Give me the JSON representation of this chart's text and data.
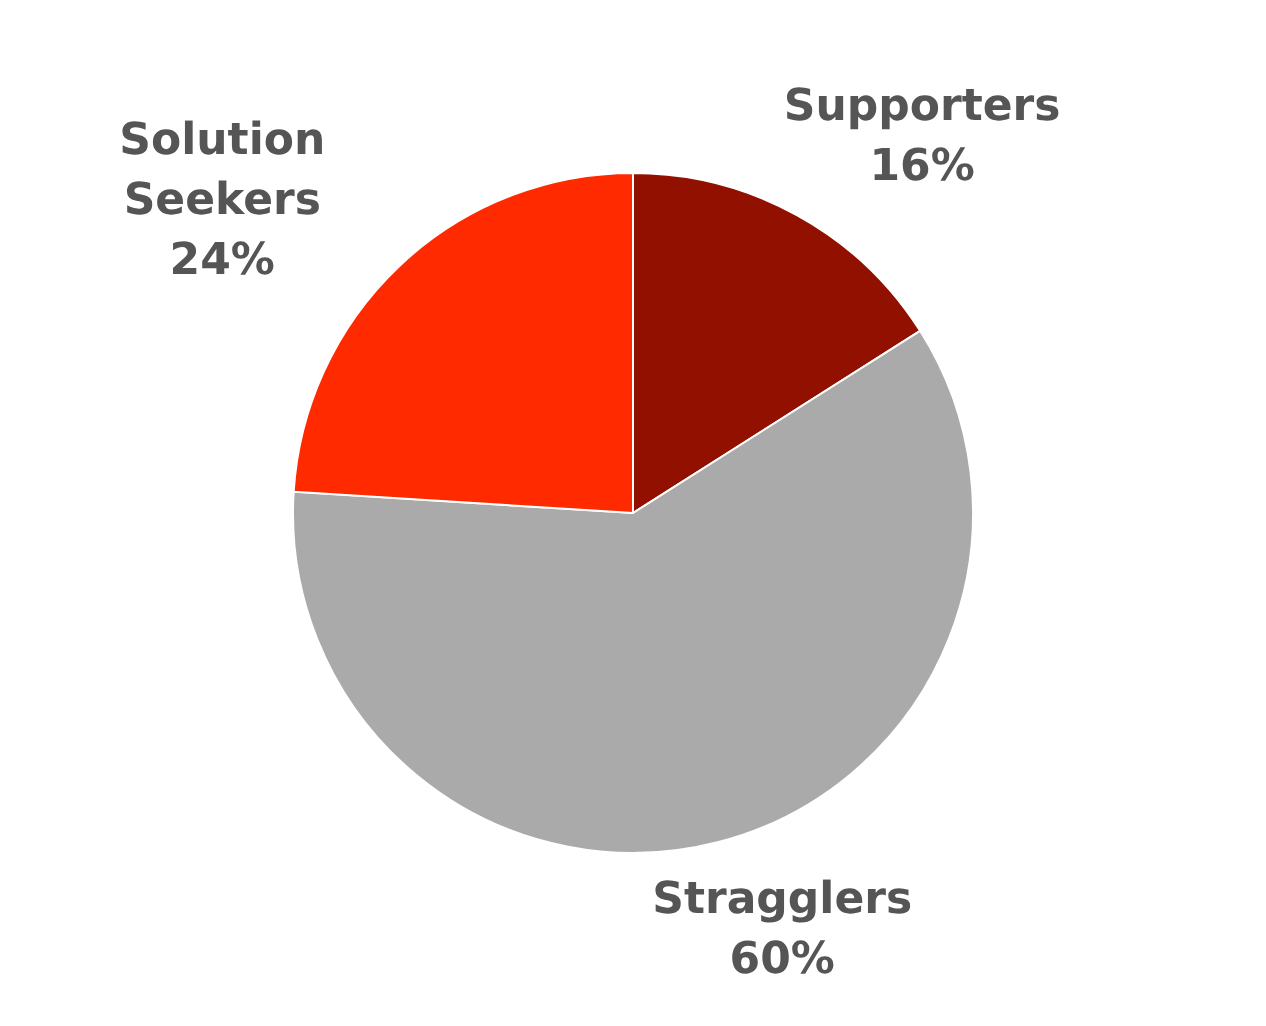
{
  "chart_data": {
    "type": "pie",
    "categories": [
      "Supporters",
      "Stragglers",
      "Solution Seekers"
    ],
    "values": [
      16,
      60,
      24
    ],
    "colors": [
      "#921000",
      "#aaaaaa",
      "#ff2a00"
    ],
    "value_labels": [
      "16%",
      "60%",
      "24%"
    ]
  }
}
